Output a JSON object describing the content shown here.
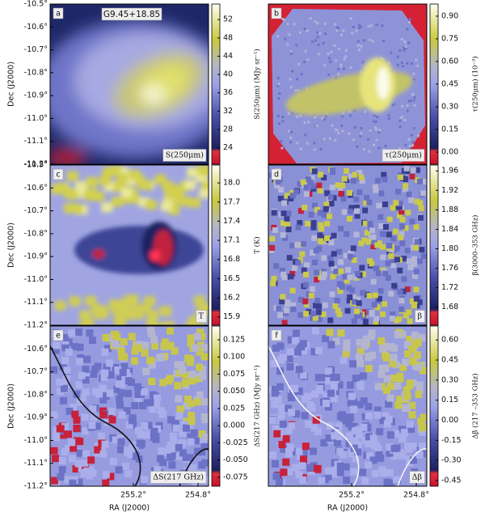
{
  "chart_data": [
    {
      "type": "image",
      "panel": "a",
      "title": "G9.45+18.85",
      "label": "S(250μm)",
      "ylabel": "Dec (J2000)",
      "ylim": [
        -10.5,
        -11.2
      ],
      "yticks": [
        {
          "value": -10.5,
          "label": "-10.5°"
        },
        {
          "value": -10.6,
          "label": "-10.6°"
        },
        {
          "value": -10.7,
          "label": "-10.7°"
        },
        {
          "value": -10.8,
          "label": "-10.8°"
        },
        {
          "value": -10.9,
          "label": "-10.9°"
        },
        {
          "value": -11.0,
          "label": "-11.0°"
        },
        {
          "value": -11.1,
          "label": "-11.1°"
        },
        {
          "value": -11.2,
          "label": "-11.2°"
        }
      ],
      "colorbar": {
        "label": "S(250μm) (MJy sr⁻¹)",
        "lim": [
          20.4,
          55.4
        ],
        "ticks": [
          24,
          28,
          32,
          36,
          40,
          44,
          48,
          52
        ]
      }
    },
    {
      "type": "image",
      "panel": "b",
      "label": "τ(250μm)",
      "colorbar": {
        "label": "τ(250μm) (10⁻³)",
        "lim": [
          -0.08,
          0.98
        ],
        "ticks": [
          {
            "value": 0,
            "label": "0.00"
          },
          0.15,
          {
            "value": 0.3,
            "label": "0.30"
          },
          0.45,
          {
            "value": 0.6,
            "label": "0.60"
          },
          0.75,
          {
            "value": 0.9,
            "label": "0.90"
          }
        ]
      }
    },
    {
      "type": "image",
      "panel": "c",
      "label": "T",
      "ylabel": "Dec (J2000)",
      "ylim": [
        -10.5,
        -11.2
      ],
      "yticks": [
        {
          "value": -10.5,
          "label": "-10.5°"
        },
        {
          "value": -10.6,
          "label": "-10.6°"
        },
        {
          "value": -10.7,
          "label": "-10.7°"
        },
        {
          "value": -10.8,
          "label": "-10.8°"
        },
        {
          "value": -10.9,
          "label": "-10.9°"
        },
        {
          "value": -11.0,
          "label": "-11.0°"
        },
        {
          "value": -11.1,
          "label": "-11.1°"
        },
        {
          "value": -11.2,
          "label": "-11.2°"
        }
      ],
      "colorbar": {
        "label": "T (K)",
        "lim": [
          15.77,
          18.28
        ],
        "ticks": [
          {
            "value": 15.9,
            "label": "15.9"
          },
          {
            "value": 16.2,
            "label": "16.2"
          },
          {
            "value": 16.5,
            "label": "16.5"
          },
          {
            "value": 16.8,
            "label": "16.8"
          },
          {
            "value": 17.1,
            "label": "17.1"
          },
          {
            "value": 17.4,
            "label": "17.4"
          },
          {
            "value": 17.7,
            "label": "17.7"
          },
          {
            "value": 18.0,
            "label": "18.0"
          }
        ]
      }
    },
    {
      "type": "image",
      "panel": "d",
      "label": "β",
      "colorbar": {
        "label": "β(3000–353 GHz)",
        "lim": [
          1.643,
          1.972
        ],
        "ticks": [
          1.68,
          1.72,
          1.76,
          {
            "value": 1.8,
            "label": "1.80"
          },
          1.84,
          1.88,
          1.92,
          1.96
        ]
      }
    },
    {
      "type": "image",
      "panel": "e",
      "label": "ΔS(217 GHz)",
      "ylabel": "Dec (J2000)",
      "ylim": [
        -10.5,
        -11.2
      ],
      "yticks": [
        {
          "value": -10.6,
          "label": "-10.6°"
        },
        {
          "value": -10.7,
          "label": "-10.7°"
        },
        {
          "value": -10.8,
          "label": "-10.8°"
        },
        {
          "value": -10.9,
          "label": "-10.9°"
        },
        {
          "value": -11.0,
          "label": "-11.0°"
        },
        {
          "value": -11.1,
          "label": "-11.1°"
        },
        {
          "value": -11.2,
          "label": "-11.2°"
        }
      ],
      "xlabel": "RA (J2000)",
      "xlim": [
        255.715,
        254.735
      ],
      "xticks": [
        {
          "value": 255.2,
          "label": "255.2°"
        },
        {
          "value": 254.8,
          "label": "254.8°"
        }
      ],
      "colorbar": {
        "label": "ΔS(217 GHz) (MJy sr⁻¹)",
        "lim": [
          -0.088,
          0.145
        ],
        "ticks": [
          -0.075,
          {
            "value": -0.05,
            "label": "-0.050"
          },
          -0.025,
          {
            "value": 0,
            "label": "0.000"
          },
          0.025,
          {
            "value": 0.05,
            "label": "0.050"
          },
          0.075,
          {
            "value": 0.1,
            "label": "0.100"
          },
          0.125
        ]
      }
    },
    {
      "type": "image",
      "panel": "f",
      "label": "Δβ",
      "xlabel": "RA (J2000)",
      "xlim": [
        255.715,
        254.735
      ],
      "xticks": [
        {
          "value": 255.2,
          "label": "255.2°"
        },
        {
          "value": 254.8,
          "label": "254.8°"
        }
      ],
      "colorbar": {
        "label": "Δβ (217 –353 GHz)",
        "lim": [
          -0.493,
          0.704
        ],
        "ticks": [
          -0.45,
          {
            "value": -0.3,
            "label": "-0.30"
          },
          -0.15,
          {
            "value": 0,
            "label": "0.00"
          },
          0.15,
          {
            "value": 0.3,
            "label": "0.30"
          },
          0.45,
          {
            "value": 0.6,
            "label": "0.60"
          }
        ]
      }
    }
  ]
}
